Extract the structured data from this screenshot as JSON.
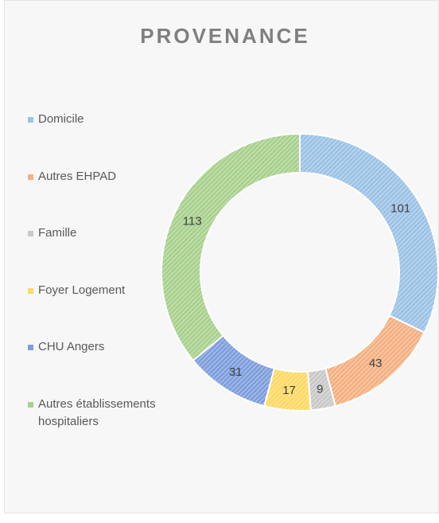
{
  "chart_data": {
    "type": "donut",
    "title": "PROVENANCE",
    "categories": [
      "Domicile",
      "Autres EHPAD",
      "Famille",
      "Foyer Logement",
      "CHU Angers",
      "Autres établissements hospitaliers"
    ],
    "values": [
      101,
      43,
      9,
      17,
      31,
      113
    ],
    "colors": [
      "#9dc3e6",
      "#f4b183",
      "#c9c9c9",
      "#ffd966",
      "#7f9fdc",
      "#a9d18e"
    ],
    "legend": "left"
  }
}
